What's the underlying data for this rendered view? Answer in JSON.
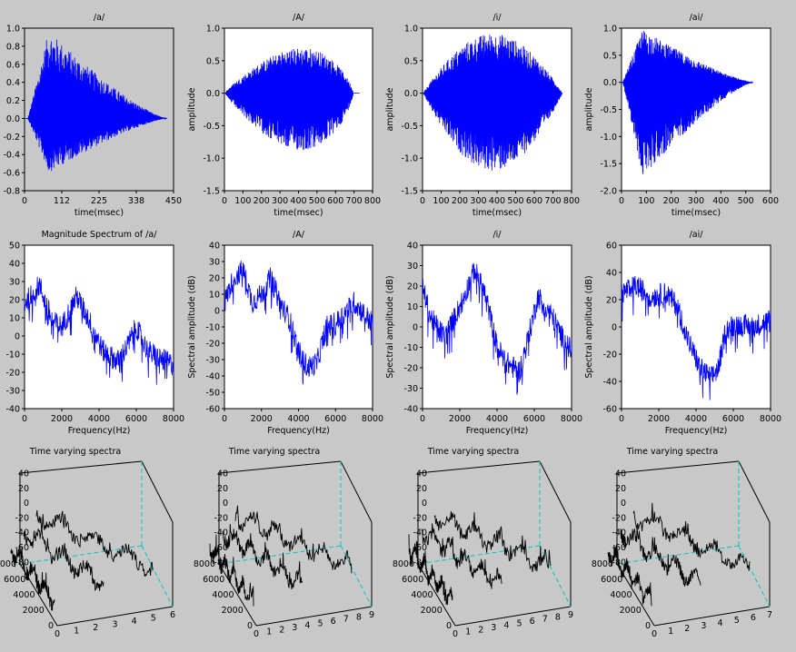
{
  "figure": {
    "background": "#c8c8c8",
    "plot_background": "#ffffff",
    "wave_color": "#0000ff",
    "surface_color": "#000000",
    "box_edge_color": "#00c8c8"
  },
  "chart_data": [
    {
      "id": "w1",
      "type": "line",
      "title": "/a/",
      "xlabel": "time(msec)",
      "ylabel": "",
      "xlim": [
        0,
        450
      ],
      "ylim": [
        -0.8,
        1.0
      ],
      "xticks": [
        "0",
        "112",
        "225",
        "338",
        "450"
      ],
      "yticks": [
        "-0.8",
        "-0.6",
        "-0.4",
        "-0.2",
        "0.0",
        "0.2",
        "0.4",
        "0.6",
        "0.8",
        "1.0"
      ],
      "series": [
        {
          "kind": "wave",
          "t0": 10,
          "t1": 430,
          "peak_t": 95,
          "peak_hi": 0.97,
          "peak_lo": -0.6,
          "shape": "decay"
        }
      ]
    },
    {
      "id": "w2",
      "type": "line",
      "title": "/A/",
      "xlabel": "time(msec)",
      "ylabel": "amplitude",
      "xlim": [
        0,
        800
      ],
      "ylim": [
        -1.5,
        1.0
      ],
      "xticks": [
        "0",
        "100",
        "200",
        "300",
        "400",
        "500",
        "600",
        "700",
        "800"
      ],
      "yticks": [
        "-1.5",
        "-1.0",
        "-0.5",
        "0.0",
        "0.5",
        "1.0"
      ],
      "series": [
        {
          "kind": "wave",
          "t0": 5,
          "t1": 730,
          "peak_t": 440,
          "peak_hi": 0.95,
          "peak_lo": -1.2,
          "shape": "rise"
        }
      ]
    },
    {
      "id": "w3",
      "type": "line",
      "title": "/i/",
      "xlabel": "time(msec)",
      "ylabel": "amplitude",
      "xlim": [
        0,
        800
      ],
      "ylim": [
        -1.5,
        1.0
      ],
      "xticks": [
        "0",
        "100",
        "200",
        "300",
        "400",
        "500",
        "600",
        "700",
        "800"
      ],
      "yticks": [
        "-1.5",
        "-1.0",
        "-0.5",
        "0.0",
        "0.5",
        "1.0"
      ],
      "series": [
        {
          "kind": "wave",
          "t0": 5,
          "t1": 750,
          "peak_t": 340,
          "peak_hi": 0.92,
          "peak_lo": -1.2,
          "shape": "bell"
        }
      ]
    },
    {
      "id": "w4",
      "type": "line",
      "title": "/ai/",
      "xlabel": "time(msec)",
      "ylabel": "amplitude",
      "xlim": [
        0,
        600
      ],
      "ylim": [
        -2.0,
        1.0
      ],
      "xticks": [
        "0",
        "100",
        "200",
        "300",
        "400",
        "500",
        "600"
      ],
      "yticks": [
        "-2.0",
        "-1.5",
        "-1.0",
        "-0.5",
        "0.0",
        "0.5",
        "1.0"
      ],
      "series": [
        {
          "kind": "wave",
          "t0": 5,
          "t1": 530,
          "peak_t": 80,
          "peak_hi": 0.98,
          "peak_lo": -1.75,
          "shape": "decay"
        }
      ]
    },
    {
      "id": "s1",
      "type": "line",
      "title": "Magnitude Spectrum of /a/",
      "xlabel": "Frequency(Hz)",
      "ylabel": "",
      "xlim": [
        0,
        8000
      ],
      "ylim": [
        -40,
        50
      ],
      "xticks": [
        "0",
        "2000",
        "4000",
        "6000",
        "8000"
      ],
      "yticks": [
        "-40",
        "-30",
        "-20",
        "-10",
        "0",
        "10",
        "20",
        "30",
        "40",
        "50"
      ],
      "series": [
        {
          "kind": "spectrum",
          "x": [
            0,
            800,
            1500,
            2000,
            2800,
            3500,
            4200,
            5000,
            5500,
            6000,
            6600,
            7200,
            8000
          ],
          "y": [
            18,
            28,
            8,
            5,
            22,
            8,
            -8,
            -14,
            -6,
            5,
            -8,
            -12,
            -16
          ]
        }
      ]
    },
    {
      "id": "s2",
      "type": "line",
      "title": "/A/",
      "xlabel": "Frequency(Hz)",
      "ylabel": "Spectral amplitude (dB)",
      "xlim": [
        0,
        8000
      ],
      "ylim": [
        -60,
        40
      ],
      "xticks": [
        "0",
        "2000",
        "4000",
        "6000",
        "8000"
      ],
      "yticks": [
        "-60",
        "-50",
        "-40",
        "-30",
        "-20",
        "-10",
        "0",
        "10",
        "20",
        "30",
        "40"
      ],
      "series": [
        {
          "kind": "spectrum",
          "x": [
            0,
            500,
            1000,
            1500,
            2000,
            2500,
            3000,
            3500,
            4000,
            4500,
            5000,
            5500,
            6000,
            7000,
            8000
          ],
          "y": [
            5,
            20,
            25,
            5,
            10,
            20,
            5,
            -5,
            -25,
            -35,
            -32,
            -10,
            -8,
            5,
            -8
          ]
        }
      ]
    },
    {
      "id": "s3",
      "type": "line",
      "title": "/i/",
      "xlabel": "Frequency(Hz)",
      "ylabel": "Spectral amplitude (dB)",
      "xlim": [
        0,
        8000
      ],
      "ylim": [
        -40,
        40
      ],
      "xticks": [
        "0",
        "2000",
        "4000",
        "6000",
        "8000"
      ],
      "yticks": [
        "-40",
        "-30",
        "-20",
        "-10",
        "0",
        "10",
        "20",
        "30",
        "40"
      ],
      "series": [
        {
          "kind": "spectrum",
          "x": [
            0,
            400,
            1200,
            2000,
            2800,
            3400,
            4000,
            4600,
            5200,
            5600,
            6200,
            6800,
            7500,
            8000
          ],
          "y": [
            20,
            5,
            -5,
            10,
            28,
            15,
            -10,
            -18,
            -22,
            -8,
            15,
            8,
            -5,
            -12
          ]
        }
      ]
    },
    {
      "id": "s4",
      "type": "line",
      "title": "/ai/",
      "xlabel": "Frequency(Hz)",
      "ylabel": "Spectral amplitude (dB)",
      "xlim": [
        0,
        8000
      ],
      "ylim": [
        -60,
        60
      ],
      "xticks": [
        "0",
        "2000",
        "4000",
        "6000",
        "8000"
      ],
      "yticks": [
        "-60",
        "-40",
        "-20",
        "0",
        "20",
        "40",
        "60"
      ],
      "series": [
        {
          "kind": "spectrum",
          "x": [
            0,
            800,
            1600,
            2400,
            3000,
            3600,
            4200,
            4800,
            5200,
            5600,
            6200,
            7000,
            8000
          ],
          "y": [
            25,
            30,
            22,
            25,
            15,
            -10,
            -30,
            -38,
            -30,
            -2,
            2,
            0,
            5
          ]
        }
      ]
    },
    {
      "id": "t1",
      "type": "surface",
      "title": "Time varying spectra",
      "zticks": [
        "40",
        "20",
        "0",
        "-20",
        "-40",
        "-60",
        "-80"
      ],
      "yticks": [
        "8000",
        "6000",
        "4000",
        "2000",
        "0"
      ],
      "xticks": [
        "0",
        "1",
        "2",
        "3",
        "4",
        "5",
        "6"
      ],
      "frames": 6
    },
    {
      "id": "t2",
      "type": "surface",
      "title": "Time varying spectra",
      "zticks": [
        "40",
        "20",
        "0",
        "-20",
        "-40",
        "-60",
        "-80"
      ],
      "yticks": [
        "8000",
        "6000",
        "4000",
        "2000",
        "0"
      ],
      "xticks": [
        "0",
        "1",
        "2",
        "3",
        "4",
        "5",
        "6",
        "7",
        "8",
        "9"
      ],
      "frames": 9
    },
    {
      "id": "t3",
      "type": "surface",
      "title": "Time varying spectra",
      "zticks": [
        "40",
        "20",
        "0",
        "-20",
        "-40",
        "-60",
        "-80"
      ],
      "yticks": [
        "8000",
        "6000",
        "4000",
        "2000",
        "0"
      ],
      "xticks": [
        "0",
        "1",
        "2",
        "3",
        "4",
        "5",
        "6",
        "7",
        "8",
        "9"
      ],
      "frames": 9
    },
    {
      "id": "t4",
      "type": "surface",
      "title": "Time varying spectra",
      "zticks": [
        "40",
        "20",
        "0",
        "-20",
        "-40",
        "-60",
        "-80"
      ],
      "yticks": [
        "8000",
        "6000",
        "4000",
        "2000",
        "0"
      ],
      "xticks": [
        "0",
        "1",
        "2",
        "3",
        "4",
        "5",
        "6",
        "7"
      ],
      "frames": 7
    }
  ]
}
